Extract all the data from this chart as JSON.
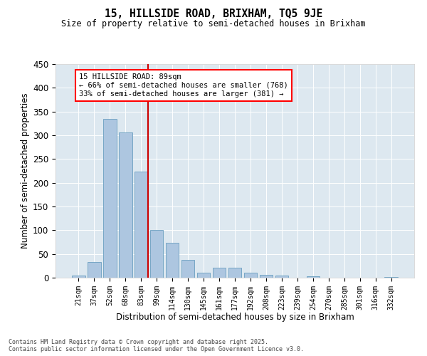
{
  "title1": "15, HILLSIDE ROAD, BRIXHAM, TQ5 9JE",
  "title2": "Size of property relative to semi-detached houses in Brixham",
  "xlabel": "Distribution of semi-detached houses by size in Brixham",
  "ylabel": "Number of semi-detached properties",
  "categories": [
    "21sqm",
    "37sqm",
    "52sqm",
    "68sqm",
    "83sqm",
    "99sqm",
    "114sqm",
    "130sqm",
    "145sqm",
    "161sqm",
    "177sqm",
    "192sqm",
    "208sqm",
    "223sqm",
    "239sqm",
    "254sqm",
    "270sqm",
    "285sqm",
    "301sqm",
    "316sqm",
    "332sqm"
  ],
  "values": [
    4,
    33,
    335,
    306,
    224,
    101,
    74,
    37,
    11,
    21,
    21,
    10,
    6,
    5,
    0,
    3,
    0,
    0,
    0,
    0,
    1
  ],
  "bar_color": "#adc6e0",
  "bar_edge_color": "#6a9fc0",
  "vline_color": "#cc0000",
  "annotation_text_line1": "15 HILLSIDE ROAD: 89sqm",
  "annotation_text_line2": "← 66% of semi-detached houses are smaller (768)",
  "annotation_text_line3": "33% of semi-detached houses are larger (381) →",
  "ylim": [
    0,
    450
  ],
  "yticks": [
    0,
    50,
    100,
    150,
    200,
    250,
    300,
    350,
    400,
    450
  ],
  "bg_color": "#dde8f0",
  "footnote1": "Contains HM Land Registry data © Crown copyright and database right 2025.",
  "footnote2": "Contains public sector information licensed under the Open Government Licence v3.0."
}
